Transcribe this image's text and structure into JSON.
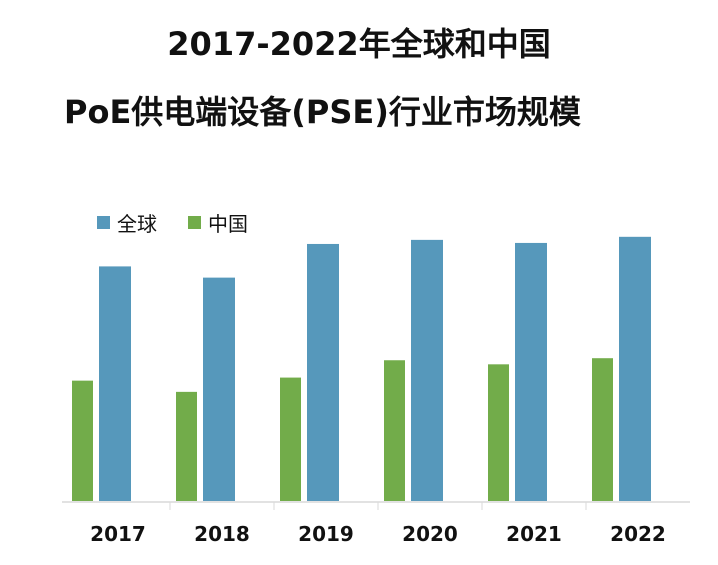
{
  "title_line1": "2017-2022年全球和中国",
  "title_line2": "PoE供电端设备(PSE)行业市场规模",
  "colors": {
    "global": "#5698BB",
    "china": "#72AC4A",
    "axis": "#D9D9D9",
    "text": "#111111"
  },
  "chart_data": {
    "type": "bar",
    "title": "2017-2022年全球和中国PoE供电端设备(PSE)行业市场规模",
    "categories": [
      "2017",
      "2018",
      "2019",
      "2020",
      "2021",
      "2022"
    ],
    "series": [
      {
        "name": "全球",
        "values": [
          230,
          219,
          252,
          256,
          253,
          259
        ]
      },
      {
        "name": "中国",
        "values": [
          118,
          107,
          121,
          138,
          134,
          140
        ]
      }
    ],
    "ylim": [
      0,
      300
    ],
    "xlabel": "",
    "ylabel": "",
    "legend_position": "top-left",
    "grid": false
  }
}
